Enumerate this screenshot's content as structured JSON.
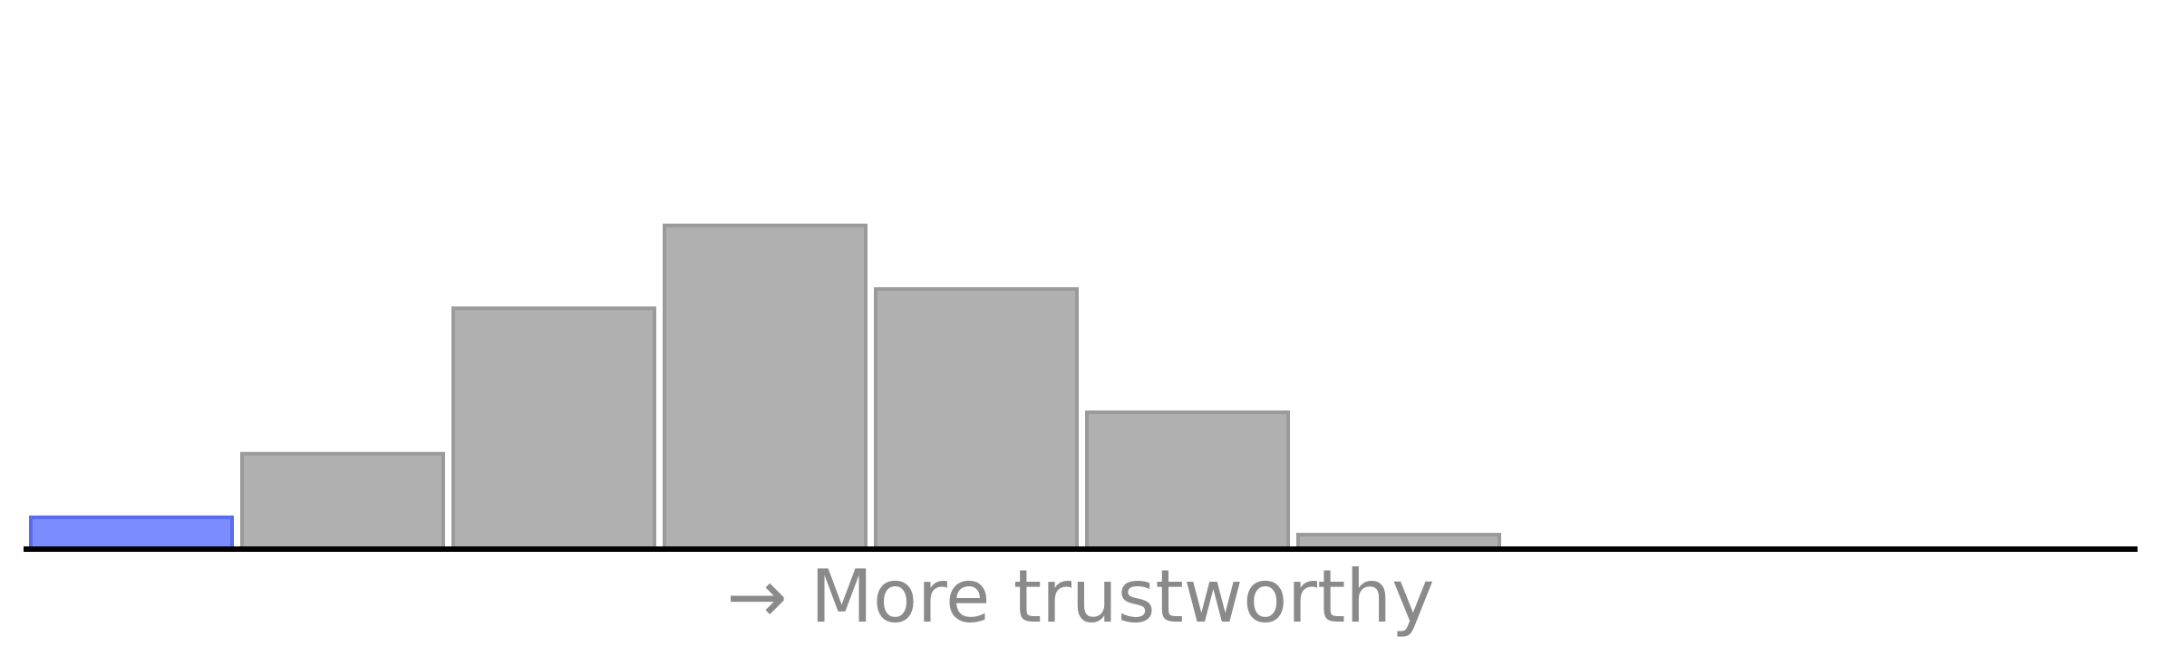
{
  "chart_data": {
    "type": "bar",
    "title": "",
    "xlabel": "→ More trustworthy",
    "ylabel": "",
    "grid": false,
    "legend": "none",
    "ylim": [
      0,
      570
    ],
    "values": [
      33,
      99,
      250,
      336,
      270,
      142,
      15
    ],
    "colors": {
      "highlight_fill": "#7b8cff",
      "highlight_stroke": "#5a6bf2",
      "bar_fill": "#b0b0b0",
      "bar_stroke": "#9a9a9a",
      "axis": "#000000",
      "label": "#8a8a8a"
    },
    "highlight_index": 0,
    "bin_slots": 10
  }
}
